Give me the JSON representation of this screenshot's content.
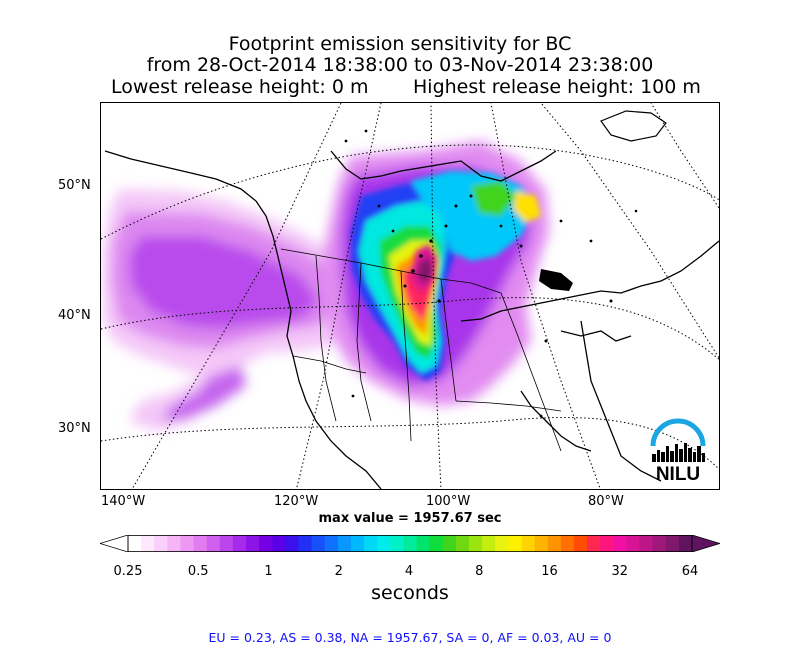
{
  "title": {
    "line1": "Footprint emission sensitivity for BC",
    "line2": "from 28-Oct-2014 18:38:00 to 03-Nov-2014 23:38:00",
    "lowest": "Lowest release height: 0 m",
    "highest": "Highest release height: 100 m"
  },
  "axes": {
    "lat_labels": [
      "50°N",
      "40°N",
      "30°N"
    ],
    "lon_labels": [
      "140°W",
      "120°W",
      "100°W",
      "80°W"
    ]
  },
  "max_value": "max value = 1957.67 sec",
  "colorbar": {
    "ticks": [
      "0.25",
      "0.5",
      "1",
      "2",
      "4",
      "8",
      "16",
      "32",
      "64"
    ],
    "label": "seconds",
    "colors": [
      "#ffffff",
      "#fde8fd",
      "#f9d0f9",
      "#f4b4f6",
      "#ee98f3",
      "#e27cf0",
      "#d060ee",
      "#bb44ec",
      "#a52ae9",
      "#8d14e6",
      "#7400e3",
      "#5b00e6",
      "#3a10ec",
      "#2030f4",
      "#1850fc",
      "#1070ff",
      "#0898ff",
      "#00b8ff",
      "#00d8f8",
      "#00ecec",
      "#00f0c8",
      "#00ec9c",
      "#00e46c",
      "#10dc3c",
      "#40d41c",
      "#70d810",
      "#9ce410",
      "#c4ee10",
      "#e8f410",
      "#fff000",
      "#ffd400",
      "#ffb400",
      "#ff9400",
      "#ff7000",
      "#ff4c00",
      "#ff2850",
      "#ff1480",
      "#f210a4",
      "#d81496",
      "#bc1688",
      "#a0187a",
      "#80186c",
      "#601460"
    ]
  },
  "logo": {
    "text": "NILU",
    "arc_color": "#1ba6e3"
  },
  "stats": "EU = 0.23,  AS = 0.38,  NA = 1957.67,  SA = 0,  AF = 0.03,  AU = 0"
}
